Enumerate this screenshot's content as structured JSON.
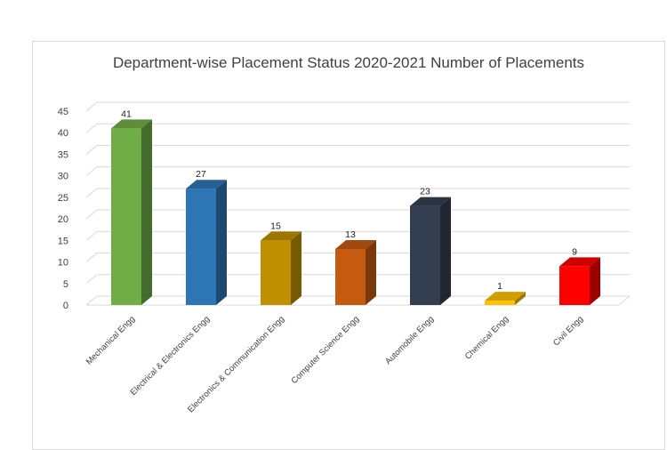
{
  "chart_data": {
    "type": "bar",
    "title": "Department-wise Placement Status 2020-2021 Number of Placements",
    "categories": [
      "Mechanical Engg",
      "Electrical & Electronics Engg",
      "Electronics & Communication Engg",
      "Computer Science Engg",
      "Automobile Engg",
      "Chemical Engg",
      "Civil Engg"
    ],
    "values": [
      41,
      27,
      15,
      13,
      23,
      1,
      9
    ],
    "colors": [
      "#70AD47",
      "#2E75B6",
      "#BF9000",
      "#C55A11",
      "#333F50",
      "#FFC000",
      "#FF0000"
    ],
    "ylim": [
      0,
      45
    ],
    "yticks": [
      0,
      5,
      10,
      15,
      20,
      25,
      30,
      35,
      40,
      45
    ],
    "grid": true,
    "style": "3d"
  }
}
